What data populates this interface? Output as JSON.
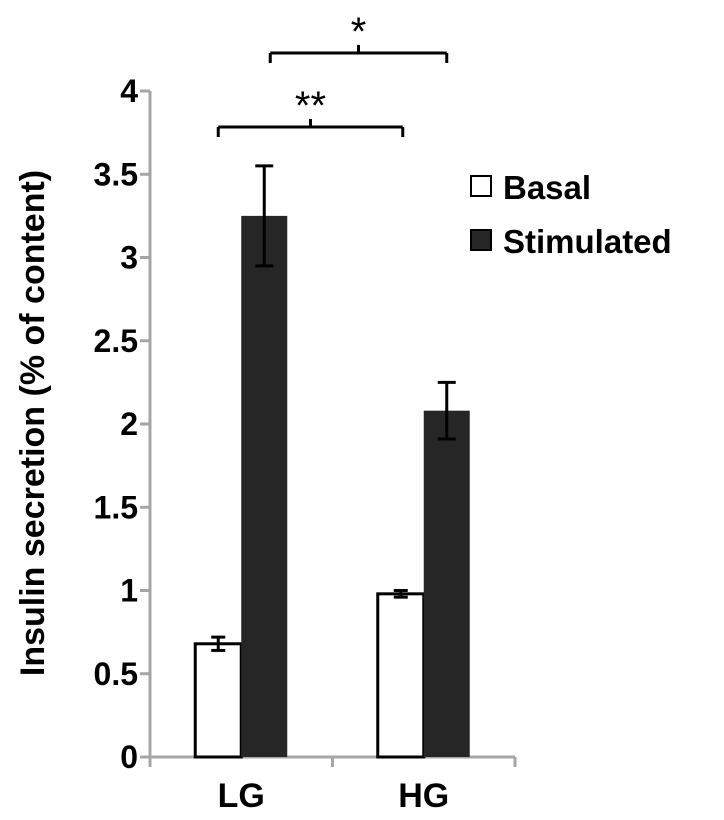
{
  "chart_data": {
    "type": "bar",
    "categories": [
      "LG",
      "HG"
    ],
    "series": [
      {
        "name": "Basal",
        "values": [
          0.68,
          0.98
        ],
        "errors": [
          0.04,
          0.02
        ],
        "color": "#ffffff"
      },
      {
        "name": "Stimulated",
        "values": [
          3.25,
          2.08
        ],
        "errors": [
          0.3,
          0.17
        ],
        "color": "#262626"
      }
    ],
    "ylabel": "Insulin secretion (% of content)",
    "ylim": [
      0,
      4
    ],
    "yticks": [
      0,
      0.5,
      1,
      1.5,
      2,
      2.5,
      3,
      3.5,
      4
    ],
    "ytick_labels": [
      "0",
      "0.5",
      "1",
      "1.5",
      "2",
      "2.5",
      "3",
      "3.5",
      "4"
    ],
    "legend": {
      "placement": "right",
      "entries": [
        "Basal",
        "Stimulated"
      ]
    },
    "grid": false,
    "significance": [
      {
        "label": "**",
        "from": "LG Basal",
        "to": "HG Basal"
      },
      {
        "label": "*",
        "from": "LG Stimulated",
        "to": "HG Stimulated"
      }
    ],
    "axis_color": "#a6a6a6"
  }
}
